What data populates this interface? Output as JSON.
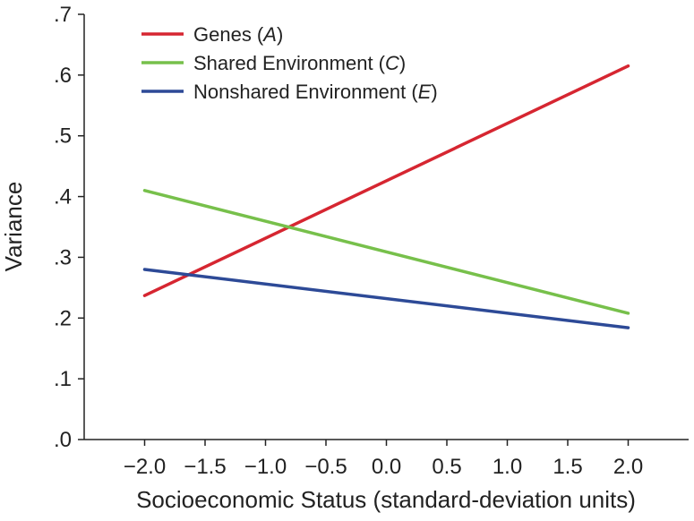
{
  "chart_data": {
    "type": "line",
    "xlabel": "Socioeconomic Status (standard-deviation units)",
    "ylabel": "Variance",
    "xlim": [
      -2.5,
      2.5
    ],
    "ylim": [
      0,
      0.7
    ],
    "x_ticks": [
      -2.0,
      -1.5,
      -1.0,
      -0.5,
      0.0,
      0.5,
      1.0,
      1.5,
      2.0
    ],
    "x_tick_labels": [
      "−2.0",
      "−1.5",
      "−1.0",
      "−0.5",
      "0.0",
      "0.5",
      "1.0",
      "1.5",
      "2.0"
    ],
    "y_ticks": [
      0,
      0.1,
      0.2,
      0.3,
      0.4,
      0.5,
      0.6,
      0.7
    ],
    "y_tick_labels": [
      ".0",
      ".1",
      ".2",
      ".3",
      ".4",
      ".5",
      ".6",
      ".7"
    ],
    "grid": false,
    "legend_position": "top-left",
    "series": [
      {
        "name": "Genes (A)",
        "name_plain": "Genes (",
        "name_var": "A",
        "name_close": ")",
        "color": "#d62631",
        "x": [
          -2.0,
          2.0
        ],
        "y": [
          0.237,
          0.615
        ]
      },
      {
        "name": "Shared Environment (C)",
        "name_plain": "Shared Environment (",
        "name_var": "C",
        "name_close": ")",
        "color": "#77c04b",
        "x": [
          -2.0,
          2.0
        ],
        "y": [
          0.41,
          0.208
        ]
      },
      {
        "name": "Nonshared Environment (E)",
        "name_plain": "Nonshared Environment (",
        "name_var": "E",
        "name_close": ")",
        "color": "#2d4a97",
        "x": [
          -2.0,
          2.0
        ],
        "y": [
          0.28,
          0.184
        ]
      }
    ]
  }
}
